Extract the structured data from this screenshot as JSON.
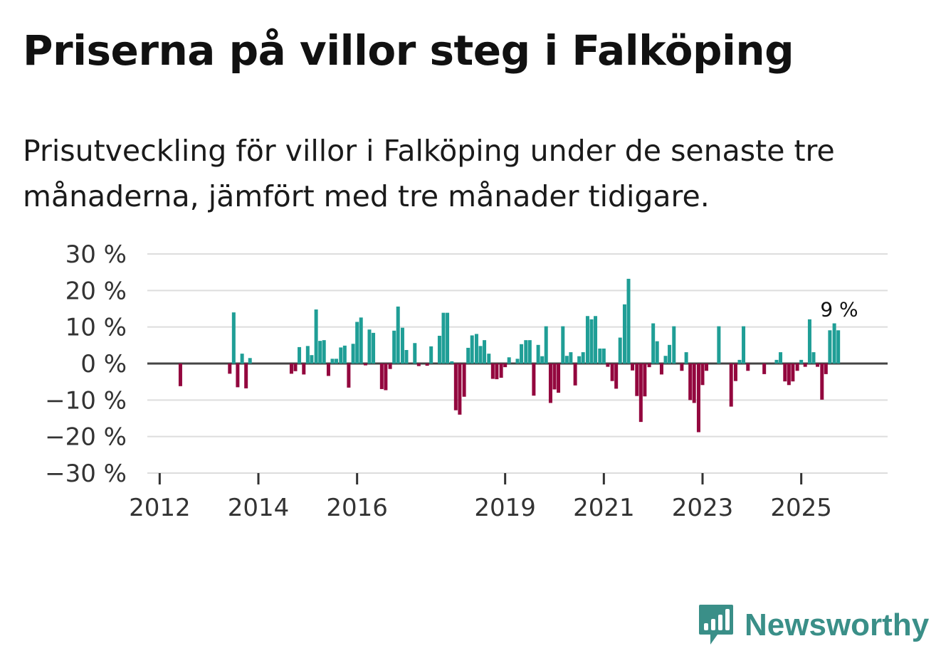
{
  "title": "Priserna på villor steg i Falköping",
  "subtitle": "Prisutveckling för villor i Falköping under de senaste tre månaderna, jämfört med tre månader tidigare.",
  "brand": {
    "name": "Newsworthy",
    "color": "#3a8f88",
    "icon": "bar-chart-speech-bubble-icon"
  },
  "colors": {
    "positive": "#1f9e96",
    "negative": "#93073e",
    "grid": "#dddddd",
    "zero_line": "#444444"
  },
  "chart_data": {
    "type": "bar",
    "title": "Priserna på villor steg i Falköping",
    "xlabel": "",
    "ylabel": "",
    "ylim": [
      -30,
      30
    ],
    "yticks": [
      30,
      20,
      10,
      0,
      -10,
      -20,
      -30
    ],
    "ytick_labels": [
      "30 %",
      "20 %",
      "10 %",
      "0 %",
      "−10 %",
      "−20 %",
      "−30 %"
    ],
    "xlim": [
      2011.75,
      2026.75
    ],
    "xticks": [
      2012,
      2014,
      2016,
      2019,
      2021,
      2023,
      2025
    ],
    "xtick_labels": [
      "2012",
      "2014",
      "2016",
      "2019",
      "2021",
      "2023",
      "2025"
    ],
    "series": [
      {
        "name": "Prisutveckling",
        "unit": "%",
        "points": [
          {
            "x": 2012.42,
            "value": -6.2
          },
          {
            "x": 2013.42,
            "value": -2.8
          },
          {
            "x": 2013.5,
            "value": 14.0
          },
          {
            "x": 2013.58,
            "value": -6.5
          },
          {
            "x": 2013.67,
            "value": 2.7
          },
          {
            "x": 2013.75,
            "value": -6.8
          },
          {
            "x": 2013.83,
            "value": 1.5
          },
          {
            "x": 2014.67,
            "value": -2.8
          },
          {
            "x": 2014.75,
            "value": -2.1
          },
          {
            "x": 2014.83,
            "value": 4.5
          },
          {
            "x": 2014.92,
            "value": -3.0
          },
          {
            "x": 2015.0,
            "value": 4.8
          },
          {
            "x": 2015.08,
            "value": 2.3
          },
          {
            "x": 2015.17,
            "value": 14.8
          },
          {
            "x": 2015.25,
            "value": 6.2
          },
          {
            "x": 2015.33,
            "value": 6.4
          },
          {
            "x": 2015.42,
            "value": -3.4
          },
          {
            "x": 2015.5,
            "value": 1.3
          },
          {
            "x": 2015.58,
            "value": 1.3
          },
          {
            "x": 2015.67,
            "value": 4.4
          },
          {
            "x": 2015.75,
            "value": 4.9
          },
          {
            "x": 2015.83,
            "value": -6.6
          },
          {
            "x": 2015.92,
            "value": 5.4
          },
          {
            "x": 2016.0,
            "value": 11.4
          },
          {
            "x": 2016.08,
            "value": 12.6
          },
          {
            "x": 2016.17,
            "value": -0.5
          },
          {
            "x": 2016.25,
            "value": 9.3
          },
          {
            "x": 2016.33,
            "value": 8.4
          },
          {
            "x": 2016.5,
            "value": -7.0
          },
          {
            "x": 2016.58,
            "value": -7.3
          },
          {
            "x": 2016.67,
            "value": -1.5
          },
          {
            "x": 2016.75,
            "value": 9.0
          },
          {
            "x": 2016.83,
            "value": 15.6
          },
          {
            "x": 2016.92,
            "value": 9.8
          },
          {
            "x": 2017.0,
            "value": 3.7
          },
          {
            "x": 2017.17,
            "value": 5.6
          },
          {
            "x": 2017.25,
            "value": -0.7
          },
          {
            "x": 2017.42,
            "value": -0.6
          },
          {
            "x": 2017.5,
            "value": 4.7
          },
          {
            "x": 2017.67,
            "value": 7.6
          },
          {
            "x": 2017.75,
            "value": 13.9
          },
          {
            "x": 2017.83,
            "value": 13.9
          },
          {
            "x": 2017.92,
            "value": 0.6
          },
          {
            "x": 2018.0,
            "value": -12.8
          },
          {
            "x": 2018.08,
            "value": -14.0
          },
          {
            "x": 2018.17,
            "value": -9.1
          },
          {
            "x": 2018.25,
            "value": 4.3
          },
          {
            "x": 2018.33,
            "value": 7.7
          },
          {
            "x": 2018.42,
            "value": 8.1
          },
          {
            "x": 2018.5,
            "value": 4.8
          },
          {
            "x": 2018.58,
            "value": 6.4
          },
          {
            "x": 2018.67,
            "value": 2.7
          },
          {
            "x": 2018.75,
            "value": -4.2
          },
          {
            "x": 2018.83,
            "value": -4.3
          },
          {
            "x": 2018.92,
            "value": -3.9
          },
          {
            "x": 2019.0,
            "value": -1.0
          },
          {
            "x": 2019.08,
            "value": 1.7
          },
          {
            "x": 2019.25,
            "value": 1.3
          },
          {
            "x": 2019.33,
            "value": 5.3
          },
          {
            "x": 2019.42,
            "value": 6.4
          },
          {
            "x": 2019.5,
            "value": 6.4
          },
          {
            "x": 2019.58,
            "value": -8.8
          },
          {
            "x": 2019.67,
            "value": 5.1
          },
          {
            "x": 2019.75,
            "value": 2.0
          },
          {
            "x": 2019.83,
            "value": 10.2
          },
          {
            "x": 2019.92,
            "value": -10.8
          },
          {
            "x": 2020.0,
            "value": -7.1
          },
          {
            "x": 2020.08,
            "value": -8.0
          },
          {
            "x": 2020.17,
            "value": 10.2
          },
          {
            "x": 2020.25,
            "value": 2.1
          },
          {
            "x": 2020.33,
            "value": 3.1
          },
          {
            "x": 2020.42,
            "value": -6.0
          },
          {
            "x": 2020.5,
            "value": 2.0
          },
          {
            "x": 2020.58,
            "value": 3.1
          },
          {
            "x": 2020.67,
            "value": 13.0
          },
          {
            "x": 2020.75,
            "value": 12.1
          },
          {
            "x": 2020.83,
            "value": 13.0
          },
          {
            "x": 2020.92,
            "value": 4.1
          },
          {
            "x": 2021.0,
            "value": 4.1
          },
          {
            "x": 2021.08,
            "value": -0.9
          },
          {
            "x": 2021.17,
            "value": -4.8
          },
          {
            "x": 2021.25,
            "value": -6.9
          },
          {
            "x": 2021.33,
            "value": 7.1
          },
          {
            "x": 2021.42,
            "value": 16.2
          },
          {
            "x": 2021.5,
            "value": 23.2
          },
          {
            "x": 2021.58,
            "value": -1.9
          },
          {
            "x": 2021.67,
            "value": -8.9
          },
          {
            "x": 2021.75,
            "value": -16.0
          },
          {
            "x": 2021.83,
            "value": -9.0
          },
          {
            "x": 2021.92,
            "value": -1.0
          },
          {
            "x": 2022.0,
            "value": 11.0
          },
          {
            "x": 2022.08,
            "value": 6.1
          },
          {
            "x": 2022.17,
            "value": -3.0
          },
          {
            "x": 2022.25,
            "value": 2.1
          },
          {
            "x": 2022.33,
            "value": 5.1
          },
          {
            "x": 2022.42,
            "value": 10.2
          },
          {
            "x": 2022.58,
            "value": -2.0
          },
          {
            "x": 2022.67,
            "value": 3.1
          },
          {
            "x": 2022.75,
            "value": -10.0
          },
          {
            "x": 2022.83,
            "value": -10.8
          },
          {
            "x": 2022.92,
            "value": -18.8
          },
          {
            "x": 2023.0,
            "value": -5.9
          },
          {
            "x": 2023.08,
            "value": -2.0
          },
          {
            "x": 2023.33,
            "value": 10.2
          },
          {
            "x": 2023.58,
            "value": -11.8
          },
          {
            "x": 2023.67,
            "value": -4.8
          },
          {
            "x": 2023.75,
            "value": 1.0
          },
          {
            "x": 2023.83,
            "value": 10.2
          },
          {
            "x": 2023.92,
            "value": -2.0
          },
          {
            "x": 2024.25,
            "value": -2.9
          },
          {
            "x": 2024.5,
            "value": 1.0
          },
          {
            "x": 2024.58,
            "value": 3.1
          },
          {
            "x": 2024.67,
            "value": -4.9
          },
          {
            "x": 2024.75,
            "value": -5.9
          },
          {
            "x": 2024.83,
            "value": -4.9
          },
          {
            "x": 2024.92,
            "value": -2.0
          },
          {
            "x": 2025.0,
            "value": 1.0
          },
          {
            "x": 2025.08,
            "value": -0.9
          },
          {
            "x": 2025.17,
            "value": 12.1
          },
          {
            "x": 2025.25,
            "value": 3.1
          },
          {
            "x": 2025.33,
            "value": -0.9
          },
          {
            "x": 2025.42,
            "value": -9.9
          },
          {
            "x": 2025.5,
            "value": -2.9
          },
          {
            "x": 2025.58,
            "value": 9.1
          },
          {
            "x": 2025.67,
            "value": 11.0
          },
          {
            "x": 2025.75,
            "value": 9.1
          }
        ]
      }
    ],
    "annotation": {
      "text": "9 %",
      "x": 2025.75,
      "value": 9.1
    }
  }
}
